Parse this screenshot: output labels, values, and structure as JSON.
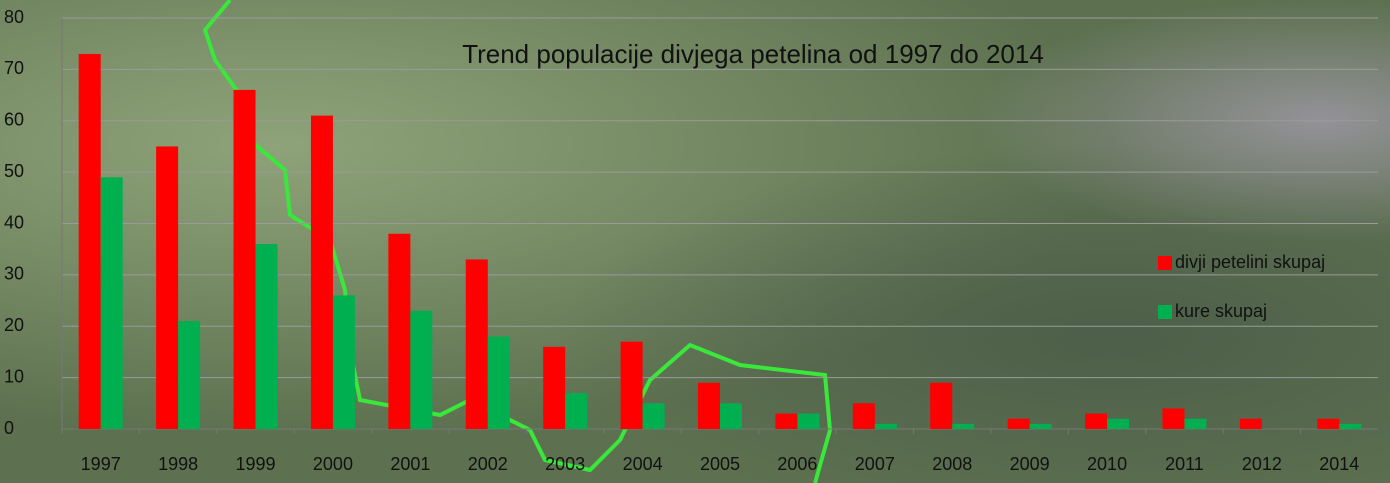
{
  "chart_data": {
    "type": "bar",
    "title": "Trend populacije divjega petelina od 1997 do 2014",
    "categories": [
      "1997",
      "1998",
      "1999",
      "2000",
      "2001",
      "2002",
      "2003",
      "2004",
      "2005",
      "2006",
      "2007",
      "2008",
      "2009",
      "2010",
      "2011",
      "2012",
      "2014"
    ],
    "series": [
      {
        "name": "divji petelini skupaj",
        "color": "#ff0000",
        "values": [
          73,
          55,
          66,
          61,
          38,
          33,
          16,
          17,
          9,
          3,
          5,
          9,
          2,
          3,
          4,
          2,
          2
        ]
      },
      {
        "name": "kure skupaj",
        "color": "#00b050",
        "values": [
          49,
          21,
          36,
          26,
          23,
          18,
          7,
          5,
          5,
          3,
          1,
          1,
          1,
          2,
          2,
          0,
          1
        ]
      }
    ],
    "ylim": [
      0,
      80
    ],
    "yticks": [
      0,
      10,
      20,
      30,
      40,
      50,
      60,
      70,
      80
    ],
    "grid": true,
    "legend": "right"
  }
}
